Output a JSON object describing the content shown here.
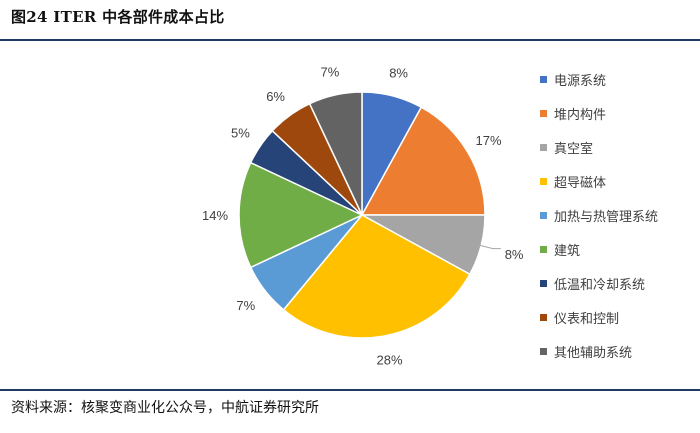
{
  "figure": {
    "title": "图24 ITER 中各部件成本占比",
    "source": "资料来源：核聚变商业化公众号，中航证券研究所"
  },
  "colors": {
    "rule": "#1f3864"
  },
  "chart_data": {
    "type": "pie",
    "categories": [
      "电源系统",
      "堆内构件",
      "真空室",
      "超导磁体",
      "加热与热管理系统",
      "建筑",
      "低温和冷却系统",
      "仪表和控制",
      "其他辅助系统"
    ],
    "values": [
      8,
      17,
      8,
      28,
      7,
      14,
      5,
      6,
      7
    ],
    "labels": [
      "8%",
      "17%",
      "8%",
      "28%",
      "7%",
      "14%",
      "5%",
      "6%",
      "7%"
    ],
    "colors": [
      "#4472c4",
      "#ed7d31",
      "#a5a5a5",
      "#ffc000",
      "#5b9bd5",
      "#70ad47",
      "#264478",
      "#9e480e",
      "#636363"
    ],
    "legend_position": "right",
    "start_angle": "12 o'clock",
    "direction": "clockwise"
  }
}
